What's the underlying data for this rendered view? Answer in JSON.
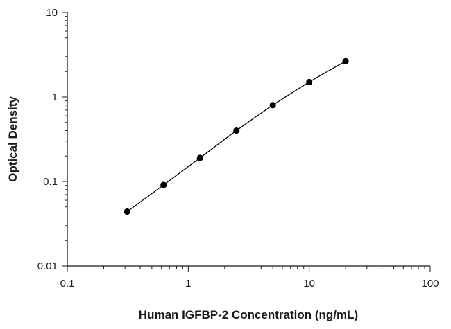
{
  "chart_data": {
    "type": "scatter",
    "title": "",
    "xlabel": "Human IGFBP-2 Concentration (ng/mL)",
    "ylabel": "Optical Density",
    "x_scale": "log",
    "y_scale": "log",
    "xlim": [
      0.1,
      100
    ],
    "ylim": [
      0.01,
      10
    ],
    "x_ticks": [
      {
        "value": 0.1,
        "label": "0.1"
      },
      {
        "value": 1,
        "label": "1"
      },
      {
        "value": 10,
        "label": "10"
      },
      {
        "value": 100,
        "label": "100"
      }
    ],
    "y_ticks": [
      {
        "value": 0.01,
        "label": "0.01"
      },
      {
        "value": 0.1,
        "label": "0.1"
      },
      {
        "value": 1,
        "label": "1"
      },
      {
        "value": 10,
        "label": "10"
      }
    ],
    "grid": false,
    "legend": "none",
    "series": [
      {
        "x": [
          0.3125,
          0.625,
          1.25,
          2.5,
          5,
          10,
          20
        ],
        "y": [
          0.044,
          0.091,
          0.19,
          0.4,
          0.8,
          1.5,
          2.65
        ],
        "marker": "filled-circle",
        "fit_line": true
      }
    ],
    "colors": {
      "marker": "#000000",
      "line": "#000000",
      "axis": "#1a1a1a"
    }
  }
}
